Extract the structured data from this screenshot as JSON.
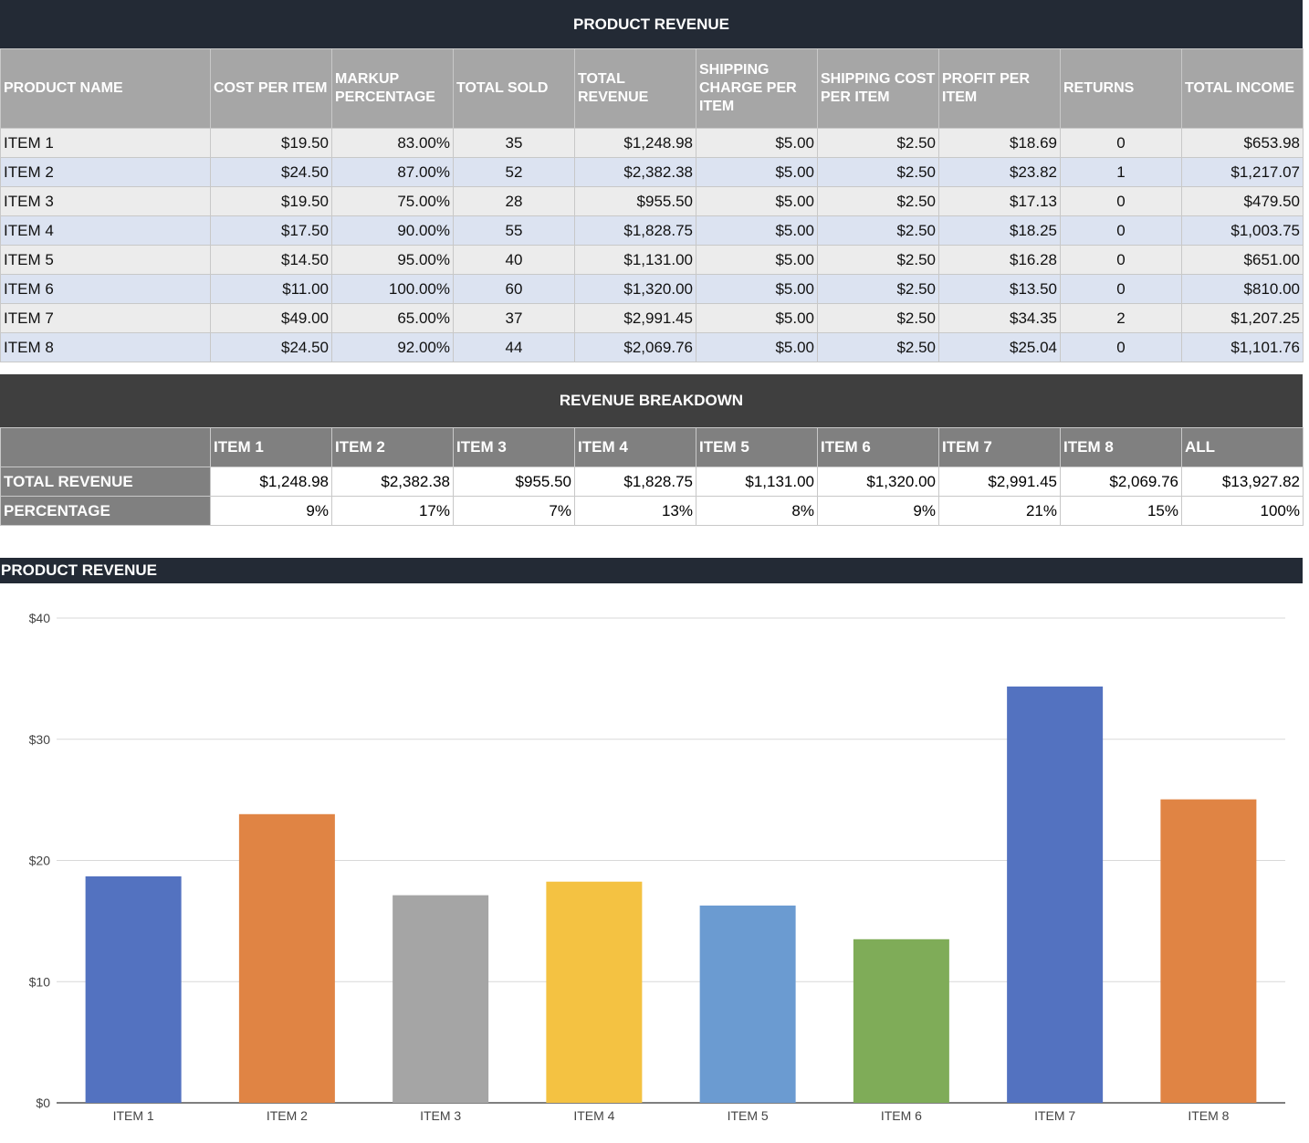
{
  "table1": {
    "title": "PRODUCT REVENUE",
    "headers": [
      "PRODUCT NAME",
      "COST PER ITEM",
      "MARKUP PERCENTAGE",
      "TOTAL SOLD",
      "TOTAL REVENUE",
      "SHIPPING CHARGE PER ITEM",
      "SHIPPING COST PER ITEM",
      "PROFIT PER ITEM",
      "RETURNS",
      "TOTAL INCOME"
    ],
    "rows": [
      [
        "ITEM 1",
        "$19.50",
        "83.00%",
        "35",
        "$1,248.98",
        "$5.00",
        "$2.50",
        "$18.69",
        "0",
        "$653.98"
      ],
      [
        "ITEM 2",
        "$24.50",
        "87.00%",
        "52",
        "$2,382.38",
        "$5.00",
        "$2.50",
        "$23.82",
        "1",
        "$1,217.07"
      ],
      [
        "ITEM 3",
        "$19.50",
        "75.00%",
        "28",
        "$955.50",
        "$5.00",
        "$2.50",
        "$17.13",
        "0",
        "$479.50"
      ],
      [
        "ITEM 4",
        "$17.50",
        "90.00%",
        "55",
        "$1,828.75",
        "$5.00",
        "$2.50",
        "$18.25",
        "0",
        "$1,003.75"
      ],
      [
        "ITEM 5",
        "$14.50",
        "95.00%",
        "40",
        "$1,131.00",
        "$5.00",
        "$2.50",
        "$16.28",
        "0",
        "$651.00"
      ],
      [
        "ITEM 6",
        "$11.00",
        "100.00%",
        "60",
        "$1,320.00",
        "$5.00",
        "$2.50",
        "$13.50",
        "0",
        "$810.00"
      ],
      [
        "ITEM 7",
        "$49.00",
        "65.00%",
        "37",
        "$2,991.45",
        "$5.00",
        "$2.50",
        "$34.35",
        "2",
        "$1,207.25"
      ],
      [
        "ITEM 8",
        "$24.50",
        "92.00%",
        "44",
        "$2,069.76",
        "$5.00",
        "$2.50",
        "$25.04",
        "0",
        "$1,101.76"
      ]
    ]
  },
  "table2": {
    "title": "REVENUE BREAKDOWN",
    "headers": [
      "",
      "ITEM 1",
      "ITEM 2",
      "ITEM 3",
      "ITEM 4",
      "ITEM 5",
      "ITEM 6",
      "ITEM 7",
      "ITEM 8",
      "ALL"
    ],
    "rows": [
      [
        "TOTAL REVENUE",
        "$1,248.98",
        "$2,382.38",
        "$955.50",
        "$1,828.75",
        "$1,131.00",
        "$1,320.00",
        "$2,991.45",
        "$2,069.76",
        "$13,927.82"
      ],
      [
        "PERCENTAGE",
        "9%",
        "17%",
        "7%",
        "13%",
        "8%",
        "9%",
        "21%",
        "15%",
        "100%"
      ]
    ]
  },
  "chart_data": {
    "type": "bar",
    "title": "PRODUCT REVENUE",
    "categories": [
      "ITEM 1",
      "ITEM 2",
      "ITEM 3",
      "ITEM 4",
      "ITEM 5",
      "ITEM 6",
      "ITEM 7",
      "ITEM 8"
    ],
    "values": [
      18.69,
      23.82,
      17.13,
      18.25,
      16.28,
      13.5,
      34.35,
      25.04
    ],
    "ylim": [
      0,
      40
    ],
    "yticks": [
      0,
      10,
      20,
      30,
      40
    ],
    "ytick_labels": [
      "$0",
      "$10",
      "$20",
      "$30",
      "$40"
    ],
    "colors": [
      "#5372c0",
      "#e08444",
      "#a5a5a5",
      "#f4c242",
      "#6b9bd1",
      "#7fac58",
      "#5372c0",
      "#e08444"
    ],
    "grid": true,
    "xlabel": "",
    "ylabel": ""
  }
}
